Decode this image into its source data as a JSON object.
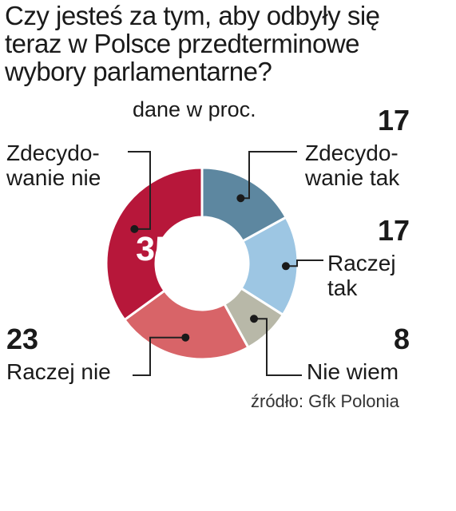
{
  "header": {
    "title": "Czy jesteś za tym, aby odbyły się\nteraz w Polsce  przedterminowe\nwybory parlamentarne?",
    "subtitle": "dane w proc."
  },
  "source": "źródło: Gfk Polonia",
  "chart_data": {
    "type": "pie",
    "title": "Czy jesteś za tym, aby odbyły się teraz w Polsce  przedterminowe wybory parlamentarne?",
    "subtitle": "dane w proc.",
    "slices": [
      {
        "label": "Zdecydo-\nwanie tak",
        "value": 17,
        "color": "#5d87a0"
      },
      {
        "label": "Raczej\ntak",
        "value": 17,
        "color": "#9dc6e3"
      },
      {
        "label": "Nie wiem",
        "value": 8,
        "color": "#b8b8a8"
      },
      {
        "label": "Raczej nie",
        "value": 23,
        "color": "#d86468"
      },
      {
        "label": "Zdecydo-\nwanie nie",
        "value": 35,
        "color": "#b7173a"
      }
    ],
    "inner_label": "35"
  }
}
